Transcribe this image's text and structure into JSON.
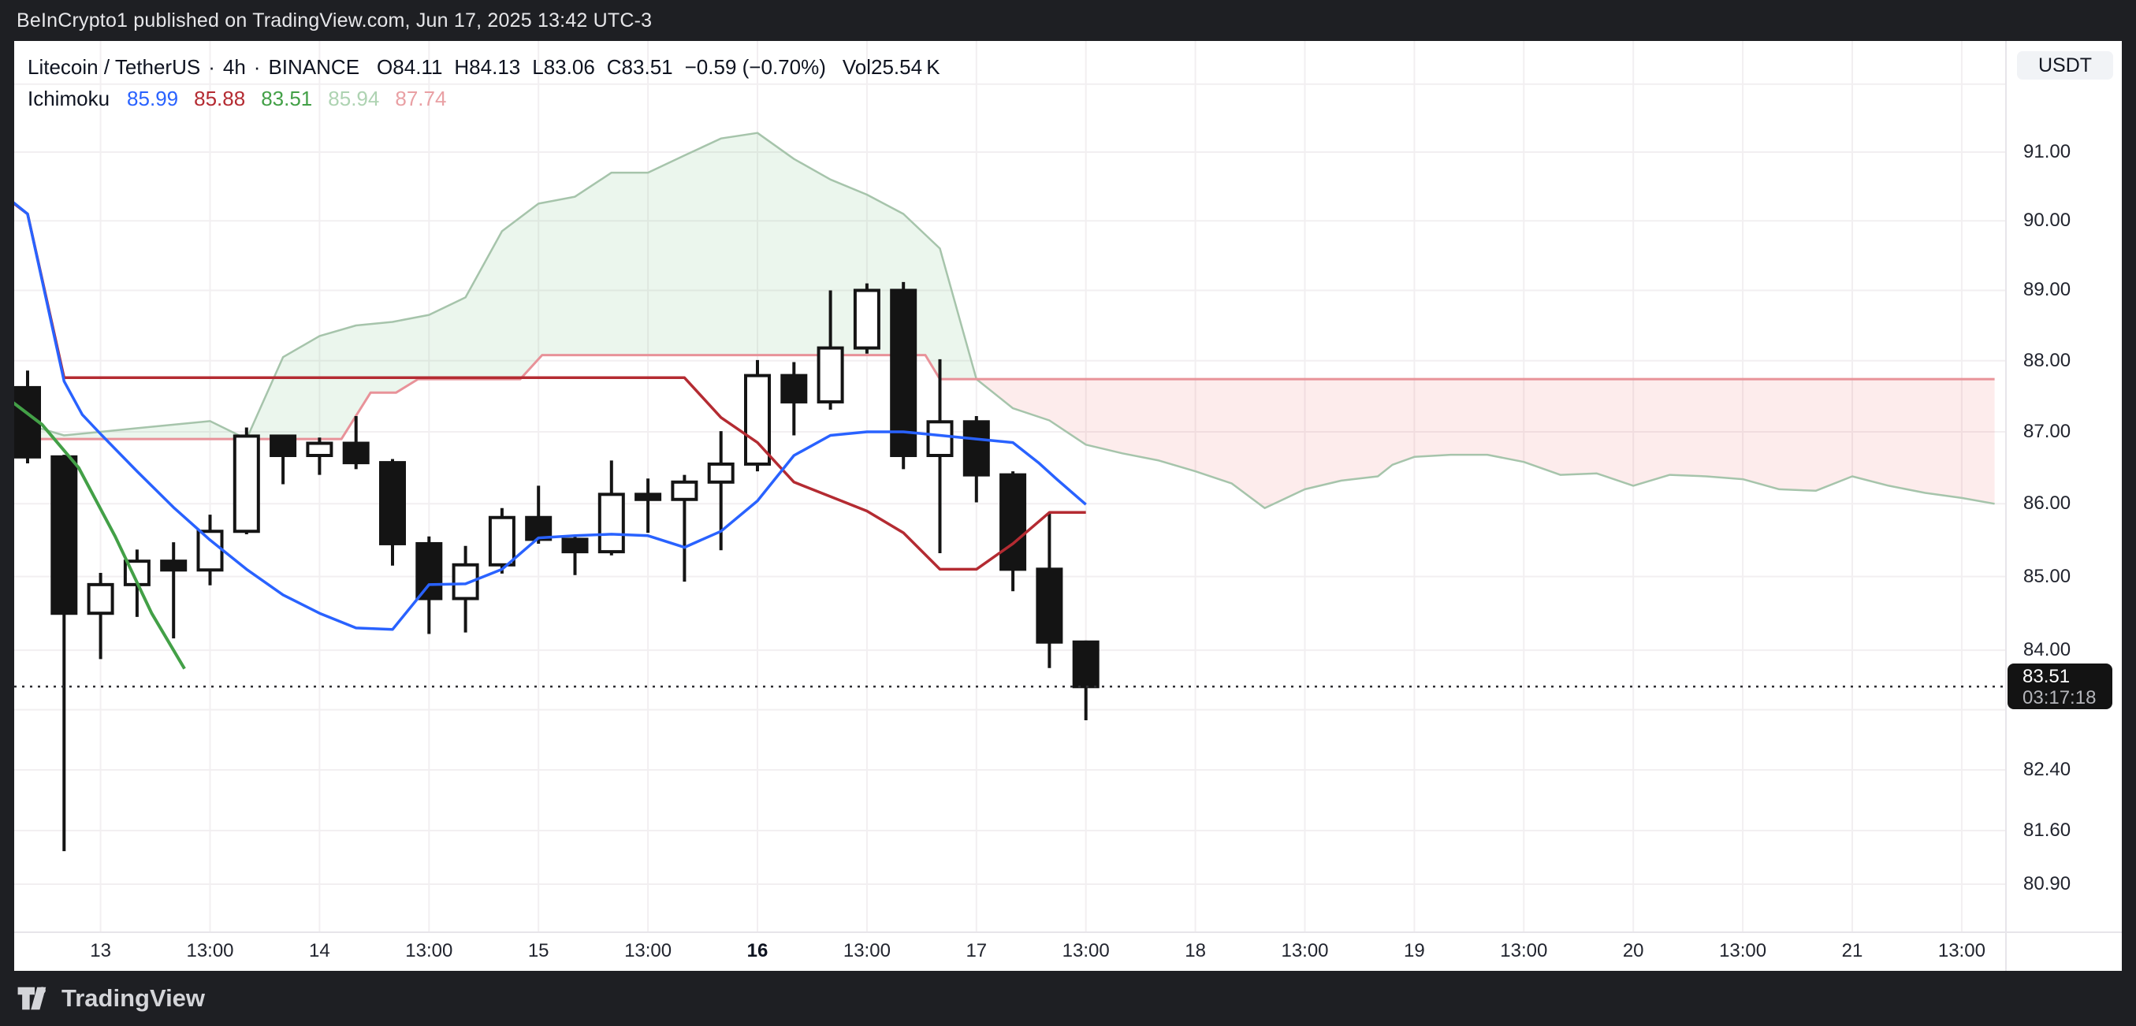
{
  "attribution": "BeInCrypto1 published on TradingView.com, Jun 17, 2025 13:42 UTC-3",
  "watermark": "TradingView",
  "header": {
    "symbol": "Litecoin / TetherUS",
    "separator": "·",
    "interval": "4h",
    "exchange": "BINANCE",
    "quote": [
      {
        "l": "O",
        "v": "84.11"
      },
      {
        "l": "H",
        "v": "84.13"
      },
      {
        "l": "L",
        "v": "83.06"
      },
      {
        "l": "C",
        "v": "83.51"
      }
    ],
    "change": "−0.59 (−0.70%)",
    "volume_label": "Vol",
    "volume": "25.54 K"
  },
  "indicator": {
    "name": "Ichimoku",
    "values": [
      {
        "series": "conversion-line",
        "value": "85.99",
        "color": "#2962FF"
      },
      {
        "series": "base-line",
        "value": "85.88",
        "color": "#B42B32"
      },
      {
        "series": "lagging-span",
        "value": "83.51",
        "color": "#43A047"
      },
      {
        "series": "leading-span-a",
        "value": "85.94",
        "color": "#AED3B2"
      },
      {
        "series": "leading-span-b",
        "value": "87.74",
        "color": "#E9A0A4"
      }
    ]
  },
  "price_axis": {
    "currency": "USDT",
    "ticks": [
      {
        "p": 92.0,
        "label": ""
      },
      {
        "p": 91.0,
        "label": "91.00"
      },
      {
        "p": 90.0,
        "label": "90.00"
      },
      {
        "p": 89.0,
        "label": "89.00"
      },
      {
        "p": 88.0,
        "label": "88.00"
      },
      {
        "p": 87.0,
        "label": "87.00"
      },
      {
        "p": 86.0,
        "label": "86.00"
      },
      {
        "p": 85.0,
        "label": "85.00"
      },
      {
        "p": 84.0,
        "label": "84.00"
      },
      {
        "p": 83.2,
        "label": ""
      },
      {
        "p": 82.4,
        "label": "82.40"
      },
      {
        "p": 81.6,
        "label": "81.60"
      },
      {
        "p": 80.9,
        "label": "80.90"
      }
    ],
    "last": {
      "price": 83.51,
      "label": "83.51",
      "countdown": "03:17:18"
    }
  },
  "time_axis": {
    "ticks": [
      {
        "k": 2,
        "label": "13",
        "bold": false
      },
      {
        "k": 5,
        "label": "13:00",
        "bold": false
      },
      {
        "k": 8,
        "label": "14",
        "bold": false
      },
      {
        "k": 11,
        "label": "13:00",
        "bold": false
      },
      {
        "k": 14,
        "label": "15",
        "bold": false
      },
      {
        "k": 17,
        "label": "13:00",
        "bold": false
      },
      {
        "k": 20,
        "label": "16",
        "bold": true
      },
      {
        "k": 23,
        "label": "13:00",
        "bold": false
      },
      {
        "k": 26,
        "label": "17",
        "bold": false
      },
      {
        "k": 29,
        "label": "13:00",
        "bold": false
      },
      {
        "k": 32,
        "label": "18",
        "bold": false
      },
      {
        "k": 35,
        "label": "13:00",
        "bold": false
      },
      {
        "k": 38,
        "label": "19",
        "bold": false
      },
      {
        "k": 41,
        "label": "13:00",
        "bold": false
      },
      {
        "k": 44,
        "label": "20",
        "bold": false
      },
      {
        "k": 47,
        "label": "13:00",
        "bold": false
      },
      {
        "k": 50,
        "label": "21",
        "bold": false
      },
      {
        "k": 53,
        "label": "13:00",
        "bold": false
      }
    ]
  },
  "chart_data": {
    "type": "candlestick",
    "title": "Litecoin / TetherUS 4h BINANCE with Ichimoku Cloud",
    "pair": "LTC/USDT",
    "timeframe": "4h",
    "ylim": [
      80.2,
      92.3
    ],
    "grid": true,
    "last_price": 83.51,
    "candles": [
      {
        "t": "Jun 12 17:00",
        "o": 87.62,
        "h": 87.86,
        "l": 86.56,
        "c": 86.65
      },
      {
        "t": "Jun 12 21:00",
        "o": 86.65,
        "h": 86.68,
        "l": 81.33,
        "c": 84.5
      },
      {
        "t": "Jun 13 01:00",
        "o": 84.5,
        "h": 85.05,
        "l": 83.88,
        "c": 84.89
      },
      {
        "t": "Jun 13 05:00",
        "o": 84.89,
        "h": 85.37,
        "l": 84.45,
        "c": 85.21
      },
      {
        "t": "Jun 13 09:00",
        "o": 85.21,
        "h": 85.47,
        "l": 84.16,
        "c": 85.09
      },
      {
        "t": "Jun 13 13:00",
        "o": 85.09,
        "h": 85.85,
        "l": 84.88,
        "c": 85.62
      },
      {
        "t": "Jun 13 17:00",
        "o": 85.62,
        "h": 87.06,
        "l": 85.58,
        "c": 86.94
      },
      {
        "t": "Jun 13 21:00",
        "o": 86.94,
        "h": 86.96,
        "l": 86.27,
        "c": 86.67
      },
      {
        "t": "Jun 14 01:00",
        "o": 86.67,
        "h": 86.92,
        "l": 86.4,
        "c": 86.84
      },
      {
        "t": "Jun 14 05:00",
        "o": 86.84,
        "h": 87.22,
        "l": 86.48,
        "c": 86.57
      },
      {
        "t": "Jun 14 09:00",
        "o": 86.57,
        "h": 86.62,
        "l": 85.15,
        "c": 85.45
      },
      {
        "t": "Jun 14 13:00",
        "o": 85.45,
        "h": 85.55,
        "l": 84.22,
        "c": 84.7
      },
      {
        "t": "Jun 14 17:00",
        "o": 84.7,
        "h": 85.42,
        "l": 84.24,
        "c": 85.16
      },
      {
        "t": "Jun 14 21:00",
        "o": 85.16,
        "h": 85.94,
        "l": 85.04,
        "c": 85.81
      },
      {
        "t": "Jun 15 01:00",
        "o": 85.81,
        "h": 86.25,
        "l": 85.45,
        "c": 85.51
      },
      {
        "t": "Jun 15 05:00",
        "o": 85.51,
        "h": 85.55,
        "l": 85.02,
        "c": 85.34
      },
      {
        "t": "Jun 15 09:00",
        "o": 85.34,
        "h": 86.6,
        "l": 85.29,
        "c": 86.13
      },
      {
        "t": "Jun 15 13:00",
        "o": 86.13,
        "h": 86.35,
        "l": 85.6,
        "c": 86.06
      },
      {
        "t": "Jun 15 17:00",
        "o": 86.06,
        "h": 86.4,
        "l": 84.93,
        "c": 86.3
      },
      {
        "t": "Jun 15 21:00",
        "o": 86.3,
        "h": 87.01,
        "l": 85.36,
        "c": 86.55
      },
      {
        "t": "Jun 16 01:00",
        "o": 86.55,
        "h": 88.01,
        "l": 86.45,
        "c": 87.79
      },
      {
        "t": "Jun 16 05:00",
        "o": 87.79,
        "h": 87.98,
        "l": 86.95,
        "c": 87.42
      },
      {
        "t": "Jun 16 09:00",
        "o": 87.42,
        "h": 89.0,
        "l": 87.31,
        "c": 88.18
      },
      {
        "t": "Jun 16 13:00",
        "o": 88.18,
        "h": 89.1,
        "l": 88.1,
        "c": 89.0
      },
      {
        "t": "Jun 16 17:00",
        "o": 89.0,
        "h": 89.12,
        "l": 86.48,
        "c": 86.67
      },
      {
        "t": "Jun 16 21:00",
        "o": 86.67,
        "h": 88.02,
        "l": 85.32,
        "c": 87.14
      },
      {
        "t": "Jun 17 01:00",
        "o": 87.14,
        "h": 87.22,
        "l": 86.02,
        "c": 86.4
      },
      {
        "t": "Jun 17 05:00",
        "o": 86.4,
        "h": 86.45,
        "l": 84.8,
        "c": 85.1
      },
      {
        "t": "Jun 17 09:00",
        "o": 85.1,
        "h": 85.88,
        "l": 83.76,
        "c": 84.11
      },
      {
        "t": "Jun 17 13:00",
        "o": 84.11,
        "h": 84.13,
        "l": 83.06,
        "c": 83.51
      }
    ],
    "ichimoku": {
      "flip_k": 26,
      "tenkan": [
        [
          -0.75,
          90.42
        ],
        [
          0,
          90.1
        ],
        [
          1,
          87.71
        ],
        [
          1.5,
          87.24
        ],
        [
          2,
          86.97
        ],
        [
          3,
          86.45
        ],
        [
          4,
          85.95
        ],
        [
          5,
          85.5
        ],
        [
          6,
          85.1
        ],
        [
          7,
          84.75
        ],
        [
          8,
          84.5
        ],
        [
          9,
          84.3
        ],
        [
          10,
          84.28
        ],
        [
          11,
          84.89
        ],
        [
          12,
          84.9
        ],
        [
          13,
          85.1
        ],
        [
          14,
          85.53
        ],
        [
          15,
          85.56
        ],
        [
          16,
          85.58
        ],
        [
          17,
          85.56
        ],
        [
          18,
          85.4
        ],
        [
          19,
          85.62
        ],
        [
          20,
          86.04
        ],
        [
          21,
          86.67
        ],
        [
          22,
          86.95
        ],
        [
          23,
          87.0
        ],
        [
          24,
          87.0
        ],
        [
          25,
          86.95
        ],
        [
          26,
          86.9
        ],
        [
          27,
          86.85
        ],
        [
          27.7,
          86.57
        ],
        [
          28.2,
          86.34
        ],
        [
          29,
          85.99
        ]
      ],
      "kijun": [
        [
          -0.75,
          90.4
        ],
        [
          0,
          90.1
        ],
        [
          1,
          87.76
        ],
        [
          18,
          87.76
        ],
        [
          19,
          87.2
        ],
        [
          20,
          86.85
        ],
        [
          21,
          86.3
        ],
        [
          22,
          86.1
        ],
        [
          23,
          85.9
        ],
        [
          24,
          85.6
        ],
        [
          25,
          85.1
        ],
        [
          26,
          85.1
        ],
        [
          27,
          85.45
        ],
        [
          28,
          85.88
        ],
        [
          29,
          85.88
        ]
      ],
      "lagging": [
        [
          -0.5,
          87.45
        ],
        [
          0.4,
          87.1
        ],
        [
          1.4,
          86.5
        ],
        [
          2.4,
          85.55
        ],
        [
          3.4,
          84.5
        ],
        [
          4.3,
          83.75
        ]
      ],
      "lead1": [
        [
          -0.75,
          87.15
        ],
        [
          0,
          87.1
        ],
        [
          1,
          86.95
        ],
        [
          2,
          87.0
        ],
        [
          3,
          87.05
        ],
        [
          4,
          87.1
        ],
        [
          5,
          87.15
        ],
        [
          6,
          86.9
        ],
        [
          7,
          88.05
        ],
        [
          8,
          88.35
        ],
        [
          9,
          88.5
        ],
        [
          10,
          88.55
        ],
        [
          11,
          88.65
        ],
        [
          12,
          88.9
        ],
        [
          13,
          89.85
        ],
        [
          14,
          90.25
        ],
        [
          15,
          90.35
        ],
        [
          16,
          90.7
        ],
        [
          17,
          90.7
        ],
        [
          18,
          90.95
        ],
        [
          19,
          91.2
        ],
        [
          20,
          91.28
        ],
        [
          21,
          90.9
        ],
        [
          22,
          90.6
        ],
        [
          23,
          90.38
        ],
        [
          24,
          90.1
        ],
        [
          25,
          89.6
        ],
        [
          26,
          87.74
        ],
        [
          27,
          87.33
        ],
        [
          28,
          87.16
        ],
        [
          29,
          86.82
        ],
        [
          30,
          86.7
        ],
        [
          31,
          86.6
        ],
        [
          32,
          86.45
        ],
        [
          33,
          86.28
        ],
        [
          33.9,
          85.94
        ],
        [
          35,
          86.2
        ],
        [
          36,
          86.32
        ],
        [
          37,
          86.38
        ],
        [
          37.4,
          86.54
        ],
        [
          38,
          86.65
        ],
        [
          39,
          86.68
        ],
        [
          40,
          86.68
        ],
        [
          41,
          86.58
        ],
        [
          42,
          86.4
        ],
        [
          43,
          86.42
        ],
        [
          44,
          86.25
        ],
        [
          45,
          86.4
        ],
        [
          46,
          86.38
        ],
        [
          47,
          86.34
        ],
        [
          48,
          86.2
        ],
        [
          49,
          86.18
        ],
        [
          50,
          86.38
        ],
        [
          51,
          86.25
        ],
        [
          52,
          86.15
        ],
        [
          53,
          86.08
        ],
        [
          53.9,
          86.0
        ]
      ],
      "lead2": [
        [
          -0.75,
          86.9
        ],
        [
          8.6,
          86.9
        ],
        [
          9.4,
          87.55
        ],
        [
          10.1,
          87.55
        ],
        [
          10.7,
          87.74
        ],
        [
          13.5,
          87.74
        ],
        [
          14.1,
          88.08
        ],
        [
          24.6,
          88.08
        ],
        [
          25,
          87.74
        ],
        [
          26,
          87.74
        ],
        [
          53.9,
          87.74
        ]
      ]
    },
    "colors": {
      "tenkan": "#2962FF",
      "kijun": "#B42B32",
      "lagging": "#43A047",
      "lead1_line": "#A6C4AB",
      "lead2_line": "#E89299",
      "cloud_green": "rgba(103,183,119,0.13)",
      "cloud_red": "rgba(239,83,80,0.11)",
      "bear": "#141414",
      "bull_fill": "#FFFFFF",
      "grid": "#F2EFF1",
      "dotted": "#2f2f33",
      "axis_line": "#E7E5EA"
    }
  }
}
